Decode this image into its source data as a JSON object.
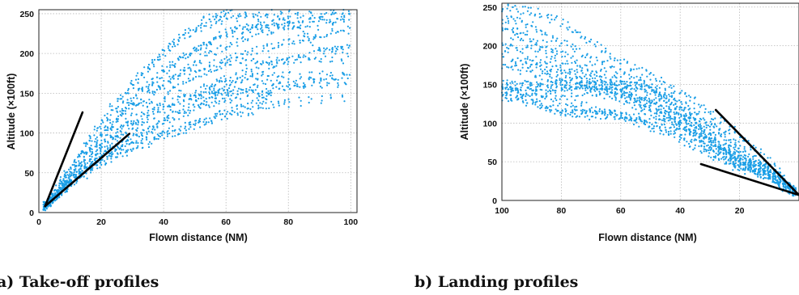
{
  "chart_data": [
    {
      "type": "scatter",
      "xlabel": "Flown distance (NM)",
      "ylabel": "Altitude (×100ft)",
      "xlim": [
        0,
        102
      ],
      "ylim": [
        0,
        255
      ],
      "x_ticks": [
        "0",
        "20",
        "40",
        "60",
        "80",
        "100"
      ],
      "y_ticks": [
        "0",
        "50",
        "100",
        "150",
        "200",
        "250"
      ],
      "grid": true,
      "caption": "a) Take-off profiles",
      "point_color": "#1a9ee6",
      "bound_lines": [
        {
          "x": [
            2,
            14
          ],
          "y": [
            8,
            126
          ]
        },
        {
          "x": [
            2,
            29
          ],
          "y": [
            8,
            99
          ]
        }
      ],
      "series": [
        {
          "x": [
            2,
            8,
            15,
            25,
            35,
            45,
            55,
            62,
            75,
            90,
            101
          ],
          "y": [
            8,
            40,
            85,
            140,
            185,
            220,
            245,
            250,
            252,
            252,
            252
          ]
        },
        {
          "x": [
            2,
            10,
            20,
            30,
            40,
            50,
            60,
            80,
            101
          ],
          "y": [
            8,
            55,
            110,
            160,
            200,
            230,
            245,
            248,
            250
          ]
        },
        {
          "x": [
            2,
            10,
            20,
            30,
            40,
            50,
            60,
            70,
            80,
            101
          ],
          "y": [
            8,
            45,
            95,
            140,
            175,
            205,
            225,
            235,
            240,
            242
          ]
        },
        {
          "x": [
            2,
            10,
            20,
            30,
            40,
            50,
            60,
            70,
            80,
            90,
            101
          ],
          "y": [
            8,
            42,
            85,
            125,
            160,
            190,
            210,
            225,
            235,
            240,
            245
          ]
        },
        {
          "x": [
            2,
            10,
            20,
            30,
            40,
            50,
            60,
            70,
            80,
            90,
            101
          ],
          "y": [
            8,
            40,
            80,
            115,
            145,
            170,
            190,
            205,
            215,
            225,
            230
          ]
        },
        {
          "x": [
            2,
            10,
            20,
            30,
            40,
            50,
            60,
            70,
            80,
            90,
            101
          ],
          "y": [
            8,
            38,
            75,
            105,
            130,
            150,
            168,
            180,
            190,
            200,
            208
          ]
        },
        {
          "x": [
            2,
            10,
            20,
            30,
            40,
            50,
            60,
            70,
            80,
            90,
            101
          ],
          "y": [
            8,
            36,
            70,
            95,
            115,
            130,
            142,
            152,
            160,
            168,
            175
          ]
        },
        {
          "x": [
            2,
            10,
            20,
            30,
            40,
            50,
            60,
            70,
            80,
            101
          ],
          "y": [
            8,
            35,
            65,
            85,
            100,
            112,
            122,
            130,
            138,
            145
          ]
        },
        {
          "x": [
            2,
            10,
            20,
            30,
            40,
            50,
            60,
            70,
            75
          ],
          "y": [
            8,
            35,
            62,
            80,
            95,
            110,
            125,
            140,
            150
          ]
        },
        {
          "x": [
            2,
            8,
            15,
            22,
            30,
            40,
            50,
            55,
            58,
            62,
            70,
            85,
            101
          ],
          "y": [
            8,
            30,
            55,
            72,
            90,
            115,
            135,
            148,
            150,
            152,
            158,
            162,
            162
          ]
        },
        {
          "x": [
            2,
            10,
            20,
            30,
            40,
            50,
            60,
            70,
            80,
            101
          ],
          "y": [
            8,
            40,
            80,
            110,
            135,
            150,
            162,
            170,
            172,
            172
          ]
        },
        {
          "x": [
            2,
            10,
            20,
            30,
            40,
            50,
            60,
            70,
            80,
            101
          ],
          "y": [
            8,
            48,
            95,
            135,
            165,
            182,
            190,
            190,
            190,
            190
          ]
        },
        {
          "x": [
            2,
            10,
            20,
            30,
            40,
            50,
            60,
            70,
            80,
            90,
            101
          ],
          "y": [
            8,
            50,
            100,
            145,
            180,
            205,
            225,
            235,
            238,
            210,
            200
          ]
        }
      ]
    },
    {
      "type": "scatter",
      "xlabel": "Flown distance (NM)",
      "ylabel": "Altitude (×100ft)",
      "xlim": [
        100,
        0
      ],
      "ylim": [
        0,
        255
      ],
      "x_ticks": [
        "100",
        "80",
        "60",
        "40",
        "20"
      ],
      "y_ticks": [
        "0",
        "50",
        "100",
        "150",
        "200",
        "250"
      ],
      "grid": true,
      "caption": "b) Landing profiles",
      "point_color": "#1a9ee6",
      "bound_lines": [
        {
          "x": [
            28,
            0
          ],
          "y": [
            117,
            7
          ]
        },
        {
          "x": [
            33,
            0
          ],
          "y": [
            47,
            7
          ]
        }
      ],
      "series": [
        {
          "x": [
            100,
            90,
            80,
            70,
            60,
            50,
            40,
            30,
            20,
            10,
            0
          ],
          "y": [
            250,
            245,
            230,
            205,
            180,
            160,
            140,
            115,
            85,
            50,
            7
          ]
        },
        {
          "x": [
            100,
            90,
            80,
            70,
            60,
            50,
            40,
            30,
            20,
            10,
            0
          ],
          "y": [
            240,
            225,
            205,
            185,
            165,
            148,
            128,
            100,
            72,
            42,
            7
          ]
        },
        {
          "x": [
            100,
            90,
            80,
            70,
            60,
            50,
            40,
            30,
            20,
            10,
            0
          ],
          "y": [
            230,
            210,
            190,
            170,
            155,
            140,
            120,
            95,
            65,
            38,
            7
          ]
        },
        {
          "x": [
            100,
            90,
            80,
            70,
            60,
            50,
            40,
            30,
            20,
            10,
            0
          ],
          "y": [
            220,
            200,
            180,
            160,
            145,
            130,
            112,
            88,
            60,
            35,
            7
          ]
        },
        {
          "x": [
            100,
            90,
            80,
            70,
            60,
            50,
            40,
            30,
            20,
            10,
            0
          ],
          "y": [
            205,
            185,
            170,
            155,
            140,
            125,
            108,
            82,
            56,
            32,
            7
          ]
        },
        {
          "x": [
            100,
            90,
            80,
            70,
            60,
            50,
            40,
            30,
            20,
            10,
            0
          ],
          "y": [
            190,
            175,
            160,
            148,
            135,
            120,
            102,
            78,
            52,
            30,
            7
          ]
        },
        {
          "x": [
            100,
            90,
            80,
            70,
            60,
            50,
            40,
            30,
            20,
            10,
            0
          ],
          "y": [
            175,
            165,
            155,
            145,
            130,
            115,
            98,
            72,
            50,
            30,
            7
          ]
        },
        {
          "x": [
            100,
            90,
            80,
            70,
            60,
            50,
            40,
            30,
            20,
            10,
            0
          ],
          "y": [
            150,
            150,
            150,
            150,
            150,
            150,
            120,
            85,
            55,
            30,
            7
          ]
        },
        {
          "x": [
            100,
            90,
            80,
            70,
            60,
            50,
            40,
            30,
            20,
            10,
            0
          ],
          "y": [
            148,
            148,
            148,
            148,
            148,
            148,
            112,
            80,
            50,
            28,
            7
          ]
        },
        {
          "x": [
            100,
            90,
            80,
            70,
            60,
            50,
            40,
            30,
            20,
            10,
            0
          ],
          "y": [
            140,
            140,
            140,
            140,
            140,
            125,
            100,
            72,
            46,
            30,
            7
          ]
        },
        {
          "x": [
            100,
            90,
            80,
            70,
            60,
            50,
            40,
            30,
            20,
            10,
            0
          ],
          "y": [
            140,
            130,
            115,
            110,
            110,
            105,
            95,
            70,
            45,
            45,
            7
          ]
        },
        {
          "x": [
            100,
            90,
            80,
            70,
            60,
            50,
            40,
            30,
            20,
            10,
            0
          ],
          "y": [
            135,
            125,
            115,
            112,
            110,
            100,
            85,
            65,
            40,
            38,
            7
          ]
        },
        {
          "x": [
            100,
            90,
            80,
            70,
            60,
            50,
            40,
            30,
            20,
            10,
            0
          ],
          "y": [
            145,
            140,
            130,
            120,
            110,
            95,
            80,
            60,
            45,
            40,
            7
          ]
        }
      ]
    }
  ]
}
